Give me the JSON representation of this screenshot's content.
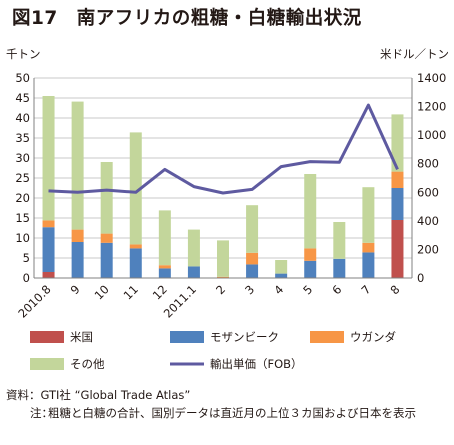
{
  "title": "図17　南アフリカの粗糖・白糖輸出状況",
  "source_label": "資料：",
  "source_text": "GTI社 “Global Trade Atlas”",
  "note_label": "注：",
  "note_text": "粗糖と白糖の合計、国別データは直近月の上位３カ国および日本を表示",
  "chart_data": {
    "type": "bar",
    "stacked": true,
    "left_axis_unit": "千トン",
    "right_axis_unit": "米ドル／トン",
    "left_ylim": [
      0,
      50
    ],
    "left_ticks": [
      0,
      5,
      10,
      15,
      20,
      25,
      30,
      35,
      40,
      45,
      50
    ],
    "right_ylim": [
      0,
      1400
    ],
    "right_ticks": [
      0,
      200,
      400,
      600,
      800,
      1000,
      1200,
      1400
    ],
    "grid": true,
    "legend_position": "bottom",
    "categories": [
      "2010.8",
      "9",
      "10",
      "11",
      "12",
      "2011.1",
      "2",
      "3",
      "4",
      "5",
      "6",
      "7",
      "8"
    ],
    "series": [
      {
        "name": "米国",
        "color": "#c0504d",
        "values": [
          1.5,
          0,
          0,
          0,
          0,
          0,
          0,
          0,
          0,
          0,
          0,
          0,
          14.5
        ]
      },
      {
        "name": "モザンビーク",
        "color": "#4f81bd",
        "values": [
          11.2,
          9.0,
          8.8,
          7.4,
          2.4,
          2.9,
          0,
          3.4,
          1.1,
          4.3,
          4.8,
          6.4,
          8.0
        ]
      },
      {
        "name": "ウガンダ",
        "color": "#f79646",
        "values": [
          1.7,
          3.1,
          2.3,
          1.0,
          0.8,
          0,
          0.3,
          2.9,
          0,
          3.1,
          0,
          2.4,
          4.1
        ]
      },
      {
        "name": "その他",
        "color": "#c3d69b",
        "values": [
          31.1,
          32.0,
          17.9,
          28.0,
          13.7,
          9.2,
          9.1,
          11.9,
          3.4,
          18.6,
          9.2,
          13.9,
          14.3
        ]
      }
    ],
    "line": {
      "name": "輸出単価（FOB）",
      "color": "#5e5aa0",
      "axis": "right",
      "values": [
        610,
        600,
        615,
        600,
        760,
        640,
        595,
        620,
        780,
        815,
        810,
        1210,
        760
      ]
    }
  }
}
